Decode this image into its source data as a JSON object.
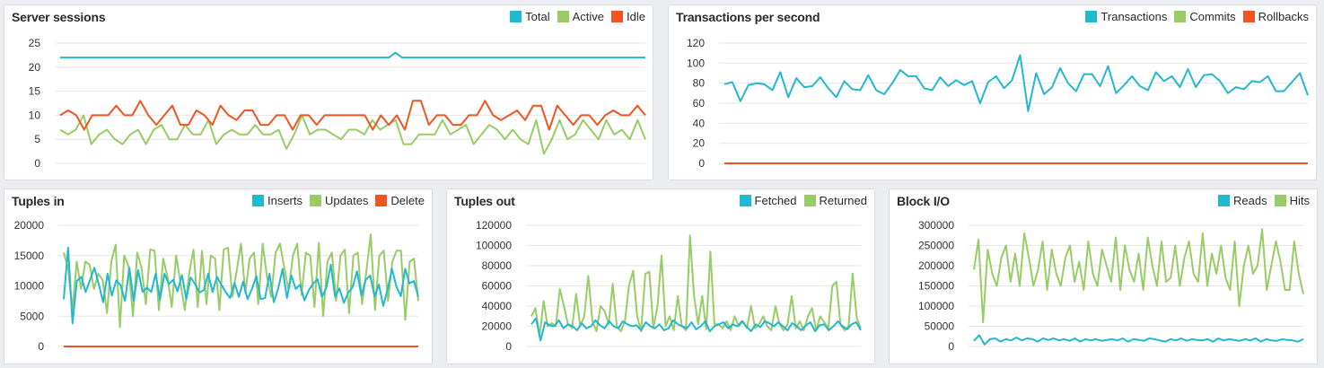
{
  "chart_data": [
    {
      "type": "line",
      "title": "Server sessions",
      "ylim": [
        0,
        25
      ],
      "yticks": [
        "0",
        "5",
        "10",
        "15",
        "20",
        "25"
      ],
      "tickvals": [
        0,
        5,
        10,
        15,
        20,
        25
      ],
      "series": [
        {
          "name": "Total",
          "color": "#22b8cf",
          "values": [
            22,
            22,
            22,
            22,
            22,
            22,
            22,
            22,
            22,
            22,
            22,
            22,
            22,
            22,
            22,
            22,
            22,
            22,
            22,
            22,
            22,
            22,
            22,
            22,
            22,
            22,
            22,
            22,
            22,
            22,
            22,
            22,
            22,
            22,
            22,
            22,
            22,
            22,
            22,
            22,
            22,
            22,
            22,
            22,
            22,
            22,
            22,
            22,
            22,
            22,
            22,
            23,
            22,
            22,
            22,
            22,
            22,
            22,
            22,
            22,
            22,
            22,
            22,
            22,
            22,
            22,
            22,
            22,
            22,
            22,
            22,
            22,
            22,
            22,
            22,
            22,
            22,
            22,
            22,
            22,
            22,
            22,
            22,
            22,
            22,
            22,
            22,
            22,
            22,
            22
          ]
        },
        {
          "name": "Active",
          "color": "#99cc66",
          "values": [
            7,
            6,
            7,
            10,
            4,
            6,
            7,
            5,
            4,
            6,
            7,
            4,
            7,
            8,
            5,
            5,
            8,
            6,
            6,
            9,
            4,
            6,
            7,
            6,
            6,
            8,
            6,
            6,
            7,
            3,
            6,
            10,
            6,
            7,
            7,
            6,
            5,
            7,
            7,
            6,
            9,
            7,
            8,
            9,
            4,
            4,
            6,
            6,
            6,
            9,
            6,
            7,
            8,
            4,
            6,
            8,
            7,
            5,
            7,
            5,
            4,
            9,
            2,
            5,
            9,
            5,
            6,
            9,
            7,
            5,
            9,
            6,
            7,
            5,
            9,
            5
          ]
        },
        {
          "name": "Idle",
          "color": "#ee5522",
          "values": [
            10,
            11,
            10,
            7,
            10,
            10,
            10,
            12,
            10,
            10,
            13,
            10,
            8,
            10,
            12,
            8,
            8,
            11,
            10,
            8,
            12,
            10,
            9,
            11,
            11,
            8,
            8,
            10,
            10,
            7,
            10,
            10,
            8,
            10,
            10,
            10,
            10,
            10,
            10,
            7,
            10,
            8,
            10,
            7,
            13,
            13,
            8,
            10,
            10,
            8,
            8,
            10,
            10,
            13,
            10,
            9,
            10,
            11,
            9,
            12,
            12,
            7,
            12,
            10,
            8,
            10,
            10,
            8,
            10,
            11,
            10,
            10,
            12,
            10
          ]
        },
        {
          "name": "",
          "color": "#22b8cf",
          "values": []
        }
      ]
    },
    {
      "type": "line",
      "title": "Transactions per second",
      "ylim": [
        0,
        120
      ],
      "yticks": [
        "0",
        "20",
        "40",
        "60",
        "80",
        "100",
        "120"
      ],
      "tickvals": [
        0,
        20,
        40,
        60,
        80,
        100,
        120
      ],
      "series": [
        {
          "name": "Transactions",
          "color": "#22b8cf",
          "values": [
            79,
            81,
            62,
            78,
            80,
            79,
            73,
            91,
            66,
            85,
            76,
            77,
            86,
            75,
            66,
            82,
            74,
            73,
            88,
            73,
            69,
            80,
            93,
            87,
            87,
            75,
            73,
            86,
            77,
            83,
            78,
            82,
            60,
            81,
            87,
            75,
            83,
            108,
            52,
            90,
            69,
            76,
            95,
            80,
            72,
            89,
            89,
            77,
            97,
            70,
            78,
            87,
            77,
            73,
            91,
            82,
            87,
            76,
            94,
            76,
            88,
            89,
            82,
            70,
            76,
            74,
            82,
            81,
            87,
            72,
            72,
            81,
            90,
            68
          ]
        },
        {
          "name": "Commits",
          "color": "#99cc66",
          "values": [
            0,
            0
          ]
        },
        {
          "name": "Rollbacks",
          "color": "#ee5522",
          "values": [
            0,
            0
          ]
        }
      ]
    },
    {
      "type": "line",
      "title": "Tuples in",
      "ylim": [
        0,
        20000
      ],
      "yticks": [
        "0",
        "5000",
        "10000",
        "15000",
        "20000"
      ],
      "tickvals": [
        0,
        5000,
        10000,
        15000,
        20000
      ],
      "series": [
        {
          "name": "Inserts",
          "color": "#22b8cf",
          "values": [
            7800,
            16300,
            3800,
            10800,
            11500,
            9000,
            11000,
            13000,
            10300,
            7300,
            12000,
            8400,
            10900,
            10100,
            7500,
            13000,
            7500,
            12600,
            9000,
            9700,
            9000,
            12000,
            7800,
            12000,
            10300,
            11000,
            9100,
            11800,
            7800,
            11400,
            10300,
            8900,
            9300,
            12000,
            9000,
            11500,
            10200,
            9000,
            8000,
            10500,
            8200,
            10700,
            7800,
            9500,
            11600,
            7800,
            8000,
            12000,
            7300,
            9600,
            12800,
            8000,
            11700,
            9500,
            10200,
            7600,
            9300,
            10400,
            11100,
            8200,
            9700,
            13500,
            8200,
            9600,
            7200,
            8900,
            9800,
            12400,
            8400,
            11000,
            11700,
            8300,
            10200,
            6700,
            9500,
            12800,
            9900,
            8300,
            12800,
            10400,
            10800,
            8200
          ]
        },
        {
          "name": "Updates",
          "color": "#99cc66",
          "values": [
            15500,
            13000,
            6000,
            14000,
            9500,
            14000,
            13500,
            9500,
            12000,
            11000,
            5500,
            14000,
            16800,
            3200,
            15000,
            13200,
            5000,
            15500,
            13000,
            7000,
            16000,
            15800,
            6000,
            14500,
            11500,
            6500,
            15000,
            10500,
            6000,
            12000,
            16000,
            6500,
            15800,
            7000,
            15000,
            14500,
            6000,
            16000,
            16300,
            8200,
            12500,
            17000,
            8800,
            14500,
            15500,
            7000,
            17000,
            11500,
            8200,
            15500,
            17000,
            13000,
            9300,
            15000,
            17000,
            8500,
            15500,
            15000,
            6500,
            17100,
            5000,
            14000,
            15500,
            7500,
            15000,
            16000,
            5500,
            15000,
            15500,
            7000,
            12500,
            18500,
            6000,
            15000,
            15800,
            7500,
            14000,
            15800,
            15800,
            4400,
            14000,
            14500,
            7500
          ]
        },
        {
          "name": "Delete",
          "color": "#ee5522",
          "values": [
            0,
            0
          ]
        }
      ]
    },
    {
      "type": "line",
      "title": "Tuples out",
      "ylim": [
        0,
        120000
      ],
      "yticks": [
        "0",
        "20000",
        "40000",
        "60000",
        "80000",
        "100000",
        "120000"
      ],
      "tickvals": [
        0,
        20000,
        40000,
        60000,
        80000,
        100000,
        120000
      ],
      "series": [
        {
          "name": "Fetched",
          "color": "#22b8cf",
          "values": [
            22000,
            28000,
            6000,
            24000,
            21000,
            20000,
            26000,
            18000,
            22000,
            20000,
            16000,
            23000,
            18000,
            20000,
            26000,
            21000,
            18000,
            25000,
            20000,
            18000,
            25000,
            22000,
            20000,
            21000,
            16000,
            24000,
            20000,
            18000,
            22000,
            16000,
            18000,
            26000,
            22000,
            20000,
            18000,
            24000,
            17000,
            20000,
            25000,
            15000,
            20000,
            22000,
            24000,
            18000,
            22000,
            20000,
            25000,
            20000,
            15000,
            22000,
            19000,
            25000,
            23000,
            20000,
            24000,
            20000,
            16000,
            23000,
            20000,
            16000,
            21000,
            24000,
            15000,
            21000,
            22000,
            16000,
            20000,
            25000,
            20000,
            17000,
            22000,
            24000,
            16000
          ]
        },
        {
          "name": "Returned",
          "color": "#99cc66",
          "values": [
            30000,
            38000,
            10000,
            45000,
            20000,
            23000,
            20000,
            57000,
            40000,
            22000,
            18000,
            52000,
            20000,
            30000,
            70000,
            25000,
            15000,
            40000,
            35000,
            22000,
            62000,
            20000,
            15000,
            25000,
            60000,
            75000,
            30000,
            15000,
            72000,
            74000,
            18000,
            40000,
            90000,
            20000,
            30000,
            16000,
            50000,
            20000,
            16000,
            110000,
            50000,
            22000,
            50000,
            17000,
            94000,
            22000,
            22000,
            18000,
            25000,
            16000,
            30000,
            20000,
            25000,
            18000,
            40000,
            18000,
            22000,
            30000,
            20000,
            16000,
            40000,
            22000,
            16000,
            22000,
            50000,
            18000,
            25000,
            16000,
            30000,
            38000,
            16000,
            30000,
            24000,
            18000,
            60000,
            64000,
            22000,
            16000,
            20000,
            72000,
            28000,
            18000
          ]
        }
      ]
    },
    {
      "type": "line",
      "title": "Block I/O",
      "ylim": [
        0,
        300000
      ],
      "yticks": [
        "0",
        "50000",
        "100000",
        "150000",
        "200000",
        "250000",
        "300000"
      ],
      "tickvals": [
        0,
        50000,
        100000,
        150000,
        200000,
        250000,
        300000
      ],
      "series": [
        {
          "name": "Reads",
          "color": "#22b8cf",
          "values": [
            14000,
            28000,
            5000,
            18000,
            20000,
            12000,
            18000,
            15000,
            22000,
            15000,
            20000,
            18000,
            12000,
            20000,
            16000,
            20000,
            15000,
            18000,
            14000,
            20000,
            12000,
            18000,
            15000,
            18000,
            14000,
            16000,
            18000,
            15000,
            20000,
            12000,
            18000,
            16000,
            14000,
            20000,
            18000,
            15000,
            12000,
            18000,
            15000,
            20000,
            14000,
            18000,
            16000,
            15000,
            18000,
            12000,
            20000,
            15000,
            18000,
            16000,
            14000,
            18000,
            15000,
            20000,
            12000,
            18000,
            15000,
            14000,
            18000,
            16000,
            15000,
            12000,
            18000
          ]
        },
        {
          "name": "Hits",
          "color": "#99cc66",
          "values": [
            190000,
            265000,
            60000,
            240000,
            180000,
            150000,
            220000,
            250000,
            160000,
            230000,
            150000,
            280000,
            220000,
            150000,
            190000,
            260000,
            140000,
            240000,
            180000,
            150000,
            220000,
            250000,
            160000,
            210000,
            140000,
            260000,
            180000,
            150000,
            240000,
            200000,
            160000,
            270000,
            140000,
            250000,
            190000,
            160000,
            230000,
            140000,
            270000,
            200000,
            150000,
            260000,
            160000,
            170000,
            250000,
            150000,
            220000,
            260000,
            180000,
            160000,
            280000,
            150000,
            230000,
            180000,
            250000,
            170000,
            140000,
            260000,
            100000,
            200000,
            250000,
            180000,
            200000,
            290000,
            140000,
            200000,
            260000,
            210000,
            140000,
            140000,
            260000,
            180000,
            130000
          ]
        }
      ]
    }
  ]
}
